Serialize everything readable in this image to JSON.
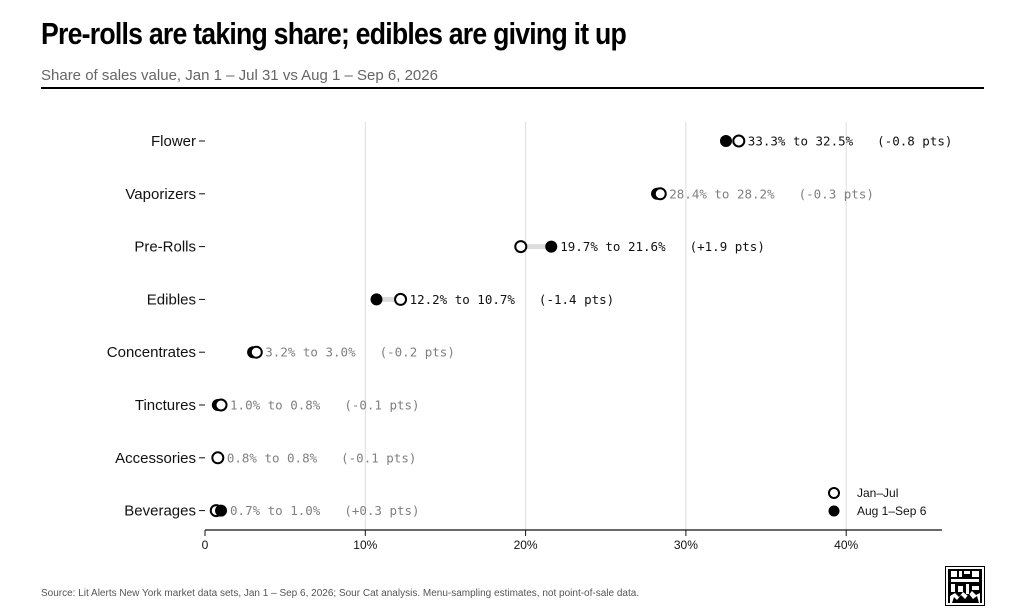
{
  "chart_data": {
    "type": "dumbbell",
    "title": "Pre-rolls are taking share; edibles are giving it up",
    "subtitle": "Share of sales value, Jan 1 – Jul 31 vs Aug 1 – Sep 6, 2026",
    "xlim": [
      0,
      46
    ],
    "xticks": [
      0,
      10,
      20,
      30,
      40
    ],
    "xtick_labels": [
      "0",
      "10%",
      "20%",
      "30%",
      "40%"
    ],
    "grid": true,
    "legend_position": "bottom-right",
    "series": [
      {
        "name": "Jan–Jul",
        "marker": "open-circle"
      },
      {
        "name": "Aug 1–Sep 6",
        "marker": "filled-circle"
      }
    ],
    "rows": [
      {
        "category": "Flower",
        "from": 33.3,
        "to": 32.5,
        "label": "33.3% to 32.5%",
        "change": "(-0.8 pts)",
        "highlight": true
      },
      {
        "category": "Vaporizers",
        "from": 28.4,
        "to": 28.2,
        "label": "28.4% to 28.2%",
        "change": "(-0.3 pts)",
        "highlight": false
      },
      {
        "category": "Pre-Rolls",
        "from": 19.7,
        "to": 21.6,
        "label": "19.7% to 21.6%",
        "change": "(+1.9 pts)",
        "highlight": true
      },
      {
        "category": "Edibles",
        "from": 12.2,
        "to": 10.7,
        "label": "12.2% to 10.7%",
        "change": "(-1.4 pts)",
        "highlight": true
      },
      {
        "category": "Concentrates",
        "from": 3.2,
        "to": 3.0,
        "label": "3.2% to 3.0%",
        "change": "(-0.2 pts)",
        "highlight": false
      },
      {
        "category": "Tinctures",
        "from": 1.0,
        "to": 0.8,
        "label": "1.0% to 0.8%",
        "change": "(-0.1 pts)",
        "highlight": false
      },
      {
        "category": "Accessories",
        "from": 0.8,
        "to": 0.8,
        "label": "0.8% to 0.8%",
        "change": "(-0.1 pts)",
        "highlight": false
      },
      {
        "category": "Beverages",
        "from": 0.7,
        "to": 1.0,
        "label": "0.7% to 1.0%",
        "change": "(+0.3 pts)",
        "highlight": false
      }
    ]
  },
  "source": "Source: Lit Alerts New York market data sets, Jan 1 – Sep 6, 2026; Sour Cat analysis. Menu-sampling estimates, not point-of-sale data.",
  "colors": {
    "highlight_text": "#111111",
    "muted_text": "#808080",
    "connector": "#dddddd",
    "grid": "#dddddd",
    "marker": "#000000"
  },
  "logo": "sour-cat-logo"
}
